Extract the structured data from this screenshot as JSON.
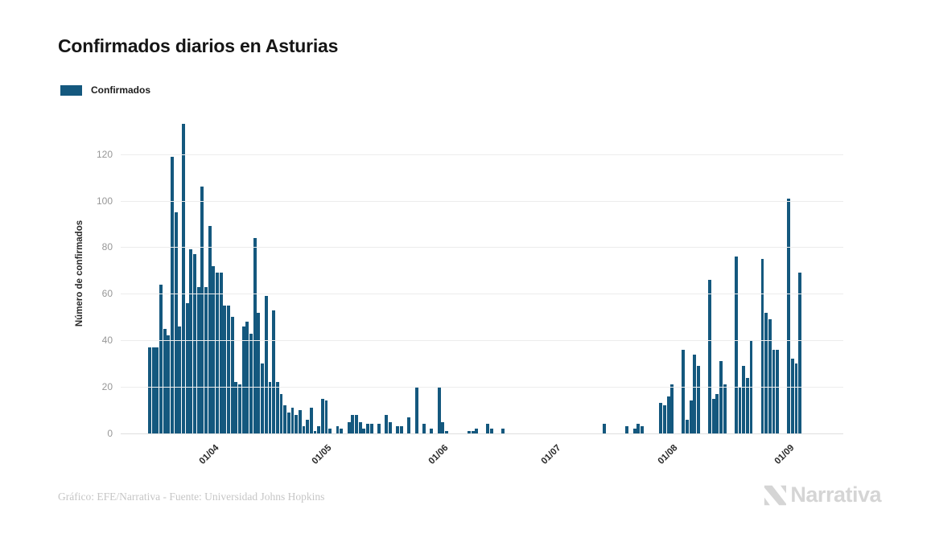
{
  "header": {
    "title": "Confirmados diarios en Asturias"
  },
  "legend": {
    "label": "Confirmados",
    "swatch_color": "#14587e"
  },
  "chart_data": {
    "type": "bar",
    "title": "Confirmados diarios en Asturias",
    "series_name": "Confirmados",
    "xlabel": "",
    "ylabel": "Número de confirmados",
    "bar_color": "#14587e",
    "grid": true,
    "legend_position": "top-left",
    "ylim": [
      0,
      138
    ],
    "y_ticks": [
      0,
      20,
      40,
      60,
      80,
      100,
      120
    ],
    "x_ticks": [
      {
        "label": "01/04",
        "day_index": 17
      },
      {
        "label": "01/05",
        "day_index": 47
      },
      {
        "label": "01/06",
        "day_index": 78
      },
      {
        "label": "01/07",
        "day_index": 108
      },
      {
        "label": "01/08",
        "day_index": 139
      },
      {
        "label": "01/09",
        "day_index": 170
      }
    ],
    "values": [
      37,
      37,
      37,
      64,
      45,
      42,
      119,
      95,
      46,
      133,
      56,
      79,
      77,
      63,
      106,
      63,
      89,
      72,
      69,
      69,
      55,
      55,
      50,
      22,
      21,
      46,
      48,
      43,
      84,
      52,
      30,
      59,
      22,
      53,
      22,
      17,
      12,
      9,
      11,
      8,
      10,
      3,
      6,
      11,
      1,
      3,
      15,
      14,
      2,
      0,
      3,
      2,
      0,
      5,
      8,
      8,
      5,
      2,
      4,
      4,
      0,
      4,
      0,
      8,
      5,
      0,
      3,
      3,
      0,
      7,
      0,
      20,
      0,
      4,
      0,
      2,
      0,
      20,
      5,
      1,
      0,
      0,
      0,
      0,
      0,
      1,
      1,
      2,
      0,
      0,
      4,
      2,
      0,
      0,
      2,
      0,
      0,
      0,
      0,
      0,
      0,
      0,
      0,
      0,
      0,
      0,
      0,
      0,
      0,
      0,
      0,
      0,
      0,
      0,
      0,
      0,
      0,
      0,
      0,
      0,
      0,
      4,
      0,
      0,
      0,
      0,
      0,
      3,
      0,
      2,
      4,
      3,
      0,
      0,
      0,
      0,
      13,
      12,
      16,
      21,
      0,
      0,
      36,
      6,
      14,
      34,
      29,
      0,
      0,
      66,
      15,
      17,
      31,
      21,
      0,
      0,
      76,
      20,
      29,
      24,
      40,
      0,
      0,
      75,
      52,
      49,
      36,
      36,
      0,
      0,
      101,
      32,
      30,
      69
    ]
  },
  "footer": {
    "credit": "Gráfico: EFE/Narrativa - Fuente: Universidad Johns Hopkins",
    "brand": "Narrativa"
  }
}
